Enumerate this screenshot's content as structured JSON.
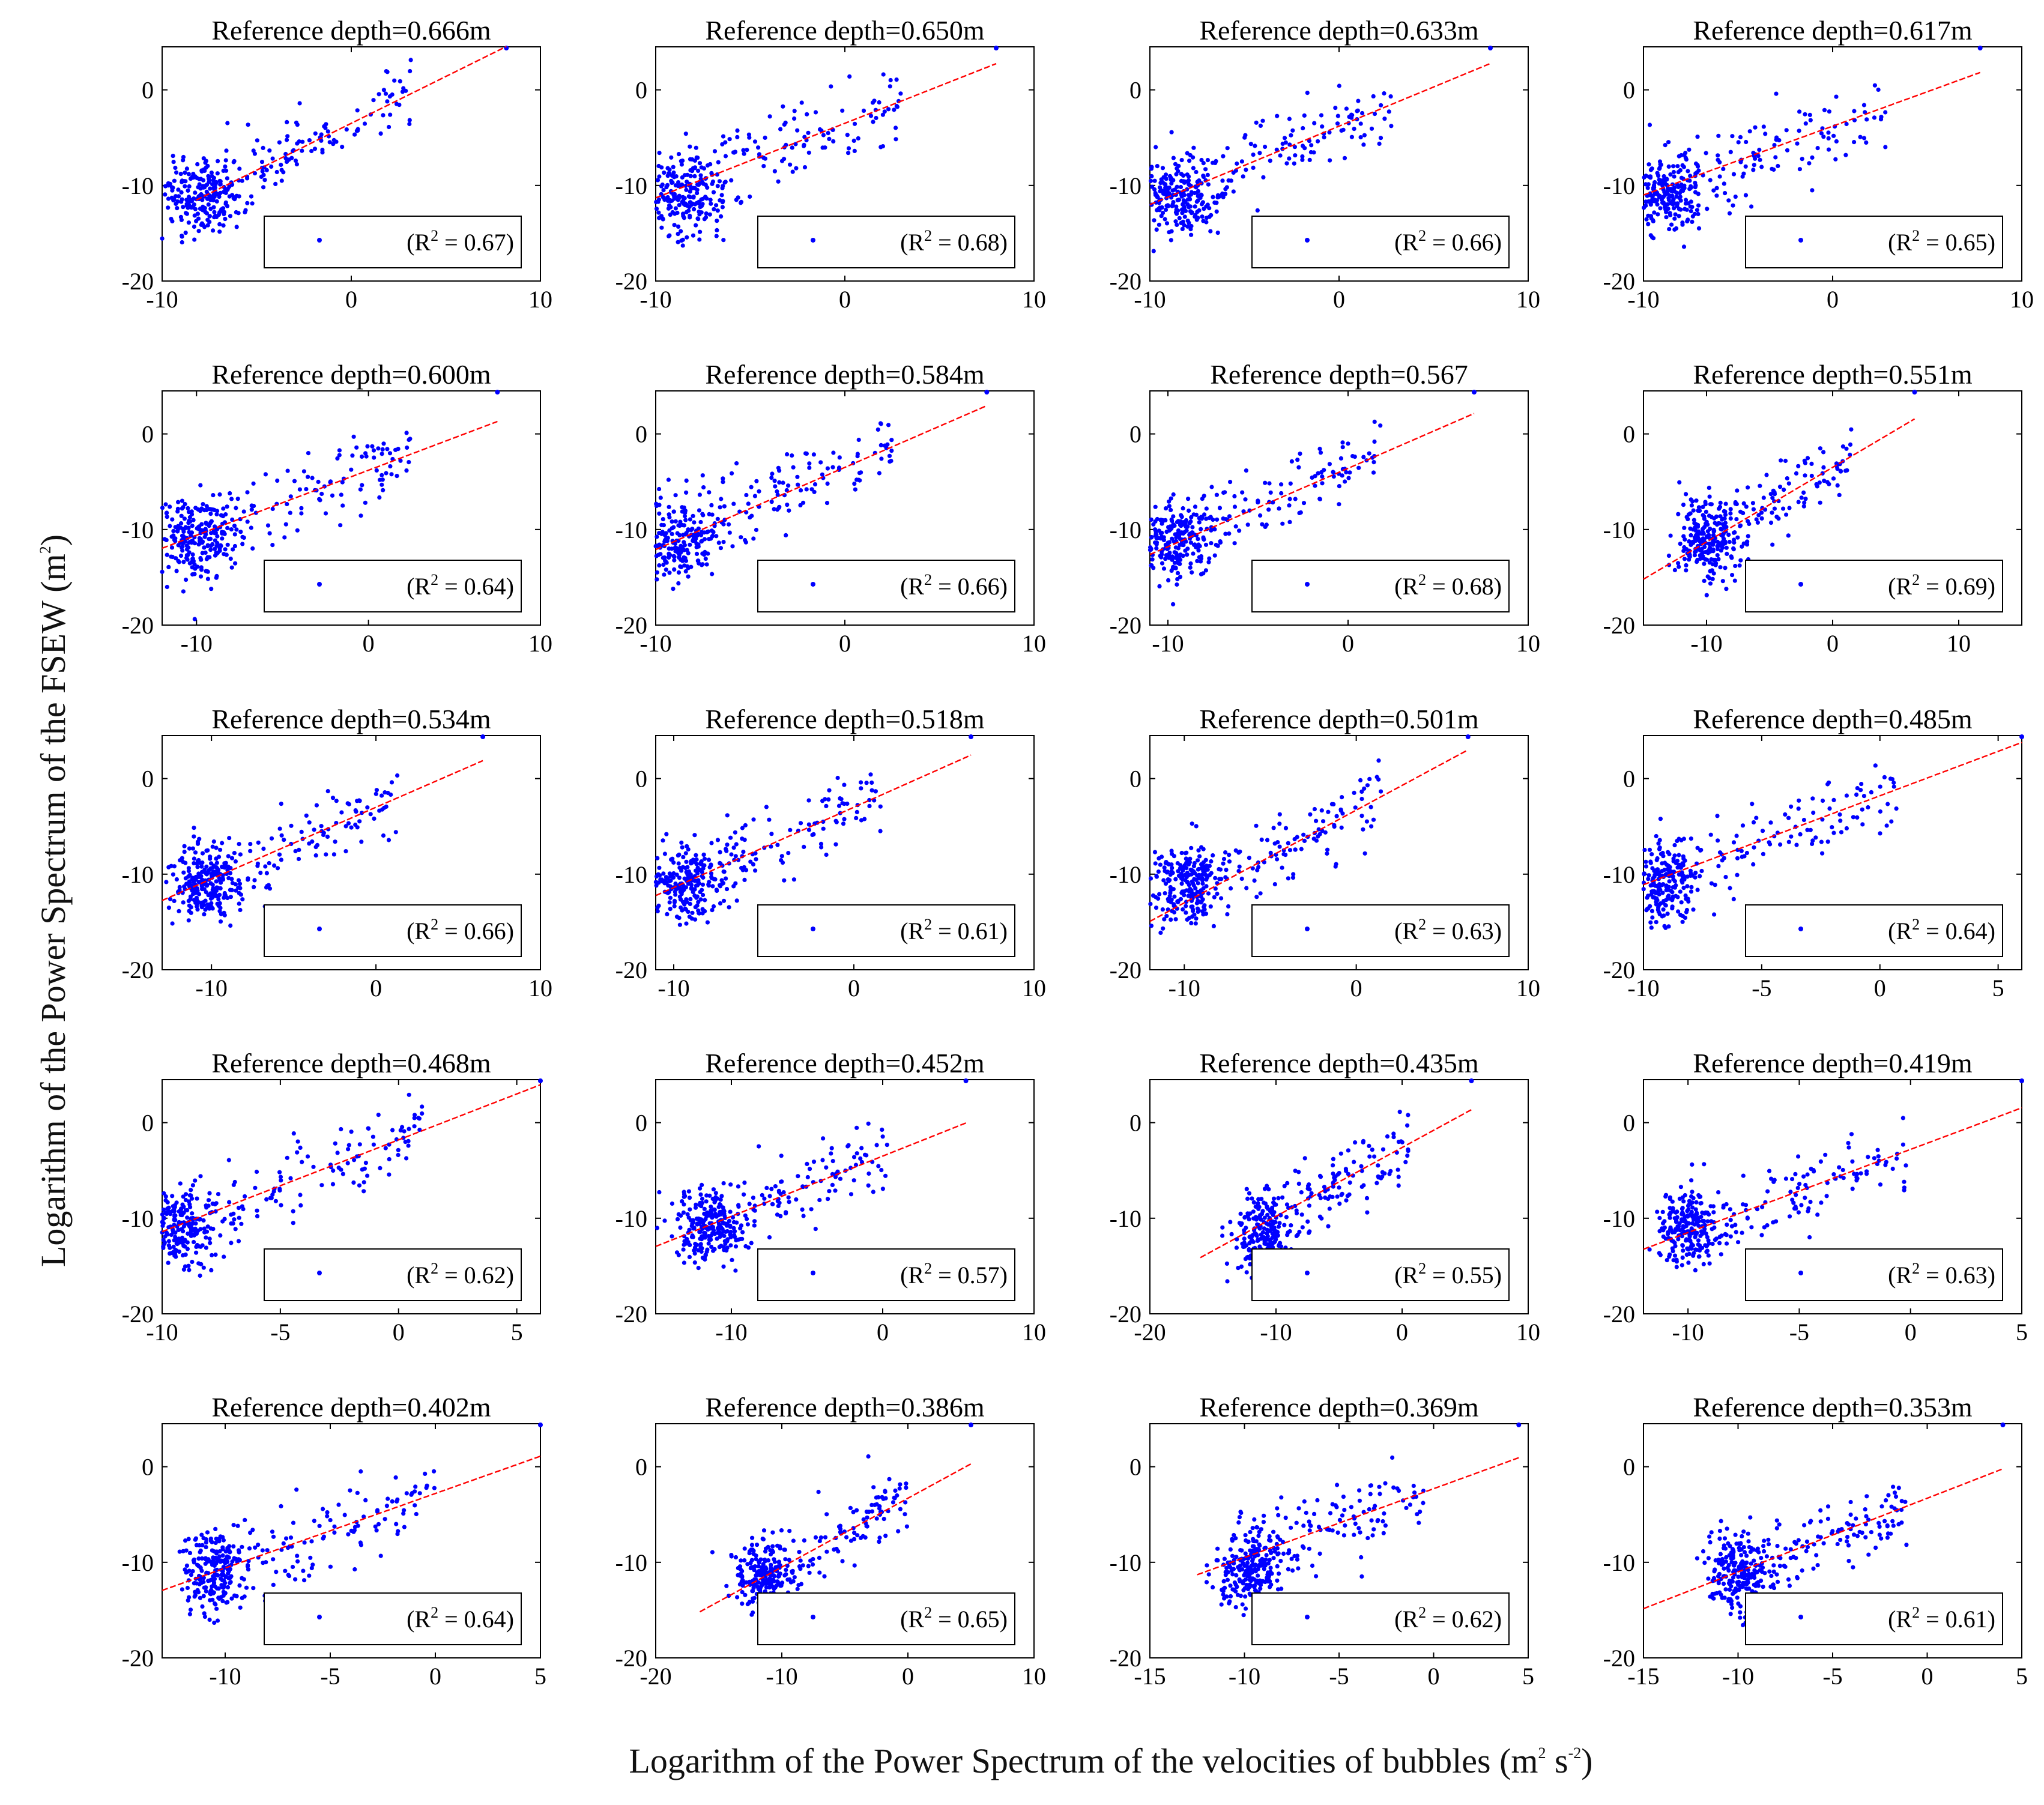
{
  "figure": {
    "xlabel": "Logarithm of the Power Spectrum of the velocities of bubbles (m",
    "xlabel_unit_sup1": "2",
    "xlabel_unit_mid": " s",
    "xlabel_unit_sup2": "-2",
    "xlabel_unit_end": ")",
    "ylabel": "Logarithm of the Power Spectrum of the FSEW (m",
    "ylabel_sup": "2",
    "ylabel_end": ")"
  },
  "colors": {
    "points": "#0000ff",
    "fit": "#ff0000",
    "axis": "#000000"
  },
  "chart_data": [
    {
      "type": "scatter",
      "title": "Reference depth=0.666m",
      "r2": "0.67",
      "xlim": [
        -10,
        10
      ],
      "ylim": [
        -20,
        4.5
      ],
      "xticks": [
        -10,
        0,
        10
      ],
      "yticks": [
        -20,
        -10,
        0
      ],
      "slope": 0.98,
      "intercept": -3.5,
      "fit_x": [
        -8.2,
        8.2
      ],
      "cluster": [
        -8.0,
        -11.0
      ],
      "spread": [
        1.5,
        2.0
      ],
      "seed": 11
    },
    {
      "type": "scatter",
      "title": "Reference depth=0.650m",
      "r2": "0.68",
      "xlim": [
        -10,
        10
      ],
      "ylim": [
        -20,
        4.5
      ],
      "xticks": [
        -10,
        0,
        10
      ],
      "yticks": [
        -20,
        -10,
        0
      ],
      "slope": 0.78,
      "intercept": -3.5,
      "fit_x": [
        -10,
        8
      ],
      "cluster": [
        -8.5,
        -11.0
      ],
      "spread": [
        1.6,
        2.0
      ],
      "seed": 12
    },
    {
      "type": "scatter",
      "title": "Reference depth=0.633m",
      "r2": "0.66",
      "xlim": [
        -10,
        10
      ],
      "ylim": [
        -20,
        4.5
      ],
      "xticks": [
        -10,
        0,
        10
      ],
      "yticks": [
        -20,
        -10,
        0
      ],
      "slope": 0.82,
      "intercept": -3.8,
      "fit_x": [
        -10,
        8
      ],
      "cluster": [
        -8.5,
        -11.0
      ],
      "spread": [
        1.6,
        2.0
      ],
      "seed": 13
    },
    {
      "type": "scatter",
      "title": "Reference depth=0.617m",
      "r2": "0.65",
      "xlim": [
        -10,
        10
      ],
      "ylim": [
        -20,
        4.5
      ],
      "xticks": [
        -10,
        0,
        10
      ],
      "yticks": [
        -20,
        -10,
        0
      ],
      "slope": 0.72,
      "intercept": -3.8,
      "fit_x": [
        -10,
        7.8
      ],
      "cluster": [
        -8.8,
        -11.0
      ],
      "spread": [
        1.5,
        2.0
      ],
      "seed": 14
    },
    {
      "type": "scatter",
      "title": "Reference depth=0.600m",
      "r2": "0.64",
      "xlim": [
        -12,
        10
      ],
      "ylim": [
        -20,
        4.5
      ],
      "xticks": [
        -10,
        0,
        10
      ],
      "yticks": [
        -20,
        -10,
        0
      ],
      "slope": 0.68,
      "intercept": -3.8,
      "fit_x": [
        -12,
        7.5
      ],
      "cluster": [
        -10.0,
        -11.0
      ],
      "spread": [
        1.5,
        2.0
      ],
      "seed": 15
    },
    {
      "type": "scatter",
      "title": "Reference depth=0.584m",
      "r2": "0.66",
      "xlim": [
        -10,
        10
      ],
      "ylim": [
        -20,
        4.5
      ],
      "xticks": [
        -10,
        0,
        10
      ],
      "yticks": [
        -20,
        -10,
        0
      ],
      "slope": 0.86,
      "intercept": -3.5,
      "fit_x": [
        -10,
        7.5
      ],
      "cluster": [
        -8.8,
        -11.0
      ],
      "spread": [
        1.5,
        2.0
      ],
      "seed": 16
    },
    {
      "type": "scatter",
      "title": "Reference depth=0.567",
      "r2": "0.68",
      "xlim": [
        -11,
        10
      ],
      "ylim": [
        -20,
        4.5
      ],
      "xticks": [
        -10,
        0,
        10
      ],
      "yticks": [
        -20,
        -10,
        0
      ],
      "slope": 0.82,
      "intercept": -3.6,
      "fit_x": [
        -11,
        7
      ],
      "cluster": [
        -9.5,
        -11.0
      ],
      "spread": [
        1.5,
        2.0
      ],
      "seed": 17
    },
    {
      "type": "scatter",
      "title": "Reference depth=0.551m",
      "r2": "0.69",
      "xlim": [
        -15,
        15
      ],
      "ylim": [
        -20,
        4.5
      ],
      "xticks": [
        -10,
        0,
        10
      ],
      "yticks": [
        -20,
        -10,
        0
      ],
      "slope": 0.78,
      "intercept": -3.5,
      "fit_x": [
        -15,
        6.5
      ],
      "cluster": [
        -10.0,
        -11.0
      ],
      "spread": [
        1.6,
        2.0
      ],
      "seed": 18
    },
    {
      "type": "scatter",
      "title": "Reference depth=0.534m",
      "r2": "0.66",
      "xlim": [
        -13,
        10
      ],
      "ylim": [
        -20,
        4.5
      ],
      "xticks": [
        -10,
        0,
        10
      ],
      "yticks": [
        -20,
        -10,
        0
      ],
      "slope": 0.75,
      "intercept": -3.0,
      "fit_x": [
        -13,
        6.5
      ],
      "cluster": [
        -10.5,
        -11.0
      ],
      "spread": [
        1.5,
        2.0
      ],
      "seed": 19
    },
    {
      "type": "scatter",
      "title": "Reference depth=0.518m",
      "r2": "0.61",
      "xlim": [
        -11,
        10
      ],
      "ylim": [
        -20,
        4.5
      ],
      "xticks": [
        -10,
        0,
        10
      ],
      "yticks": [
        -20,
        -10,
        0
      ],
      "slope": 0.84,
      "intercept": -3.0,
      "fit_x": [
        -11,
        6.5
      ],
      "cluster": [
        -9.5,
        -11.0
      ],
      "spread": [
        1.5,
        2.0
      ],
      "seed": 20
    },
    {
      "type": "scatter",
      "title": "Reference depth=0.501m",
      "r2": "0.63",
      "xlim": [
        -12,
        10
      ],
      "ylim": [
        -20,
        4.5
      ],
      "xticks": [
        -10,
        0,
        10
      ],
      "yticks": [
        -20,
        -10,
        0
      ],
      "slope": 0.97,
      "intercept": -3.3,
      "fit_x": [
        -12,
        6.5
      ],
      "cluster": [
        -9.8,
        -11.0
      ],
      "spread": [
        1.5,
        2.0
      ],
      "seed": 21
    },
    {
      "type": "scatter",
      "title": "Reference depth=0.485m",
      "r2": "0.64",
      "xlim": [
        -10,
        6
      ],
      "ylim": [
        -20,
        4.5
      ],
      "xticks": [
        -10,
        -5,
        0,
        5
      ],
      "yticks": [
        -20,
        -10,
        0
      ],
      "slope": 0.93,
      "intercept": -1.8,
      "fit_x": [
        -10,
        6
      ],
      "cluster": [
        -9.2,
        -11.0
      ],
      "spread": [
        1.0,
        2.0
      ],
      "seed": 22
    },
    {
      "type": "scatter",
      "title": "Reference depth=0.468m",
      "r2": "0.62",
      "xlim": [
        -10,
        6
      ],
      "ylim": [
        -20,
        4.5
      ],
      "xticks": [
        -10,
        -5,
        0,
        5
      ],
      "yticks": [
        -20,
        -10,
        0
      ],
      "slope": 0.96,
      "intercept": -1.8,
      "fit_x": [
        -10,
        6
      ],
      "cluster": [
        -9.2,
        -11.0
      ],
      "spread": [
        1.0,
        2.0
      ],
      "seed": 23
    },
    {
      "type": "scatter",
      "title": "Reference depth=0.452m",
      "r2": "0.57",
      "xlim": [
        -15,
        10
      ],
      "ylim": [
        -20,
        4.5
      ],
      "xticks": [
        -10,
        0,
        10
      ],
      "yticks": [
        -20,
        -10,
        0
      ],
      "slope": 0.63,
      "intercept": -3.5,
      "fit_x": [
        -15,
        5.5
      ],
      "cluster": [
        -11.5,
        -11.0
      ],
      "spread": [
        1.7,
        2.0
      ],
      "seed": 24
    },
    {
      "type": "scatter",
      "title": "Reference depth=0.435m",
      "r2": "0.55",
      "xlim": [
        -20,
        10
      ],
      "ylim": [
        -20,
        4.5
      ],
      "xticks": [
        -20,
        -10,
        0,
        10
      ],
      "yticks": [
        -20,
        -10,
        0
      ],
      "slope": 0.72,
      "intercept": -2.6,
      "fit_x": [
        -16,
        5.5
      ],
      "cluster": [
        -11.0,
        -11.5
      ],
      "spread": [
        1.6,
        2.0
      ],
      "seed": 25
    },
    {
      "type": "scatter",
      "title": "Reference depth=0.419m",
      "r2": "0.63",
      "xlim": [
        -12,
        5
      ],
      "ylim": [
        -20,
        4.5
      ],
      "xticks": [
        -10,
        -5,
        0,
        5
      ],
      "yticks": [
        -20,
        -10,
        0
      ],
      "slope": 0.87,
      "intercept": -2.8,
      "fit_x": [
        -12,
        5
      ],
      "cluster": [
        -10.0,
        -11.0
      ],
      "spread": [
        1.0,
        2.0
      ],
      "seed": 26
    },
    {
      "type": "scatter",
      "title": "Reference depth=0.402m",
      "r2": "0.64",
      "xlim": [
        -13,
        5
      ],
      "ylim": [
        -20,
        4.5
      ],
      "xticks": [
        -10,
        -5,
        0,
        5
      ],
      "yticks": [
        -20,
        -10,
        0
      ],
      "slope": 0.78,
      "intercept": -2.8,
      "fit_x": [
        -13,
        5
      ],
      "cluster": [
        -10.5,
        -11.0
      ],
      "spread": [
        1.0,
        2.0
      ],
      "seed": 27
    },
    {
      "type": "scatter",
      "title": "Reference depth=0.386m",
      "r2": "0.65",
      "xlim": [
        -20,
        10
      ],
      "ylim": [
        -20,
        4.5
      ],
      "xticks": [
        -20,
        -10,
        0,
        10
      ],
      "yticks": [
        -20,
        -10,
        0
      ],
      "slope": 0.72,
      "intercept": -3.3,
      "fit_x": [
        -16.5,
        5
      ],
      "cluster": [
        -11.5,
        -11.5
      ],
      "spread": [
        1.8,
        2.0
      ],
      "seed": 28
    },
    {
      "type": "scatter",
      "title": "Reference depth=0.369m",
      "r2": "0.62",
      "xlim": [
        -15,
        5
      ],
      "ylim": [
        -20,
        4.5
      ],
      "xticks": [
        -15,
        -10,
        -5,
        0,
        5
      ],
      "yticks": [
        -20,
        -10,
        0
      ],
      "slope": 0.72,
      "intercept": -2.3,
      "fit_x": [
        -12.5,
        4.5
      ],
      "cluster": [
        -9.8,
        -11.0
      ],
      "spread": [
        1.2,
        2.0
      ],
      "seed": 29
    },
    {
      "type": "scatter",
      "title": "Reference depth=0.353m",
      "r2": "0.61",
      "xlim": [
        -15,
        5
      ],
      "ylim": [
        -20,
        4.5
      ],
      "xticks": [
        -15,
        -10,
        -5,
        0,
        5
      ],
      "yticks": [
        -20,
        -10,
        0
      ],
      "slope": 0.77,
      "intercept": -3.3,
      "fit_x": [
        -15,
        4
      ],
      "cluster": [
        -10.0,
        -11.0
      ],
      "spread": [
        1.2,
        2.0
      ],
      "seed": 30
    }
  ]
}
